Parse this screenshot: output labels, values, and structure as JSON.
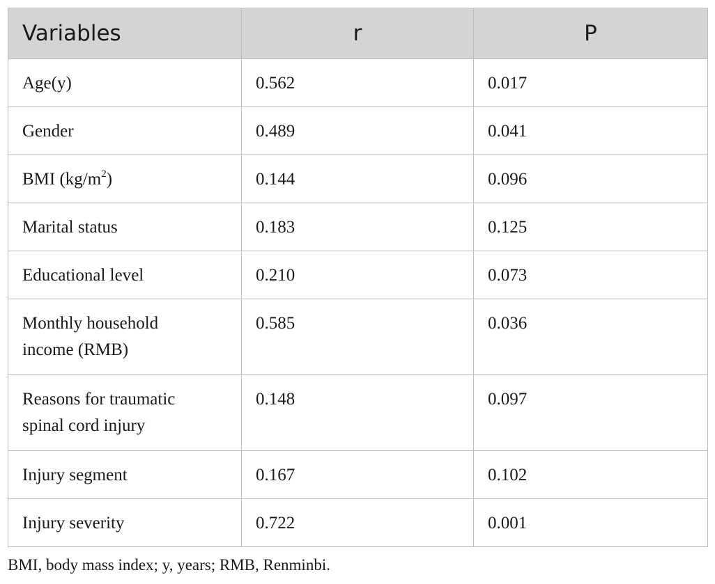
{
  "table": {
    "headers": [
      "Variables",
      "r",
      "P"
    ],
    "rows": [
      {
        "variable": "Age(y)",
        "r": "0.562",
        "p": "0.017"
      },
      {
        "variable": "Gender",
        "r": "0.489",
        "p": "0.041"
      },
      {
        "variable": "BMI (kg/m",
        "variable_sup": "2",
        "variable_suffix": ")",
        "r": "0.144",
        "p": "0.096"
      },
      {
        "variable": "Marital status",
        "r": "0.183",
        "p": "0.125"
      },
      {
        "variable": "Educational level",
        "r": "0.210",
        "p": "0.073"
      },
      {
        "variable_line1": "Monthly household",
        "variable_line2": "income (RMB)",
        "r": "0.585",
        "p": "0.036"
      },
      {
        "variable_line1": "Reasons for traumatic",
        "variable_line2": "spinal cord injury",
        "r": "0.148",
        "p": "0.097"
      },
      {
        "variable": "Injury segment",
        "r": "0.167",
        "p": "0.102"
      },
      {
        "variable": "Injury severity",
        "r": "0.722",
        "p": "0.001"
      }
    ]
  },
  "footnote": "BMI, body mass index; y, years; RMB, Renminbi."
}
